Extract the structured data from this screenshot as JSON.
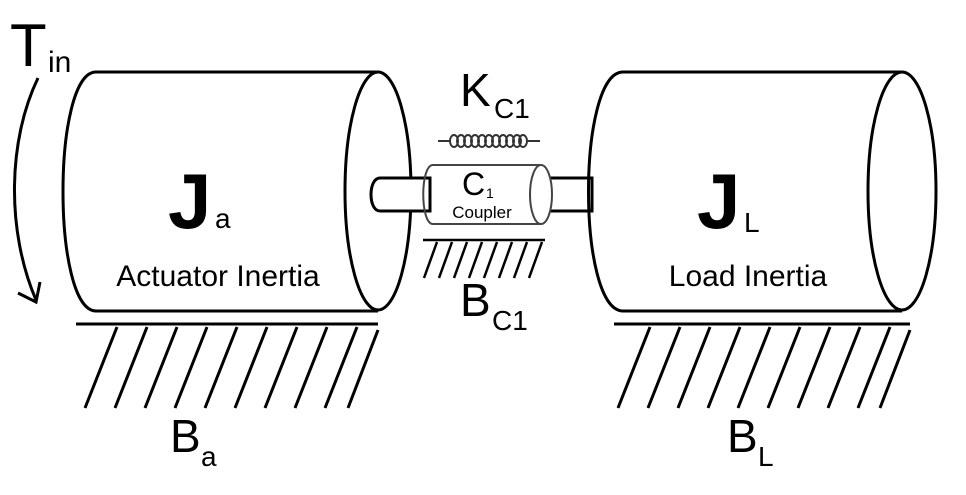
{
  "torque": {
    "main": "T",
    "sub": "in"
  },
  "actuator": {
    "symbol": "J",
    "sub": "a",
    "caption": "Actuator Inertia"
  },
  "load": {
    "symbol": "J",
    "sub": "L",
    "caption": "Load Inertia"
  },
  "coupler": {
    "symbol": "C",
    "sub": "1",
    "caption": "Coupler"
  },
  "spring": {
    "main": "K",
    "sub": "C1"
  },
  "coupler_damper": {
    "main": "B",
    "sub": "C1"
  },
  "actuator_damper": {
    "main": "B",
    "sub": "a"
  },
  "load_damper": {
    "main": "B",
    "sub": "L"
  }
}
